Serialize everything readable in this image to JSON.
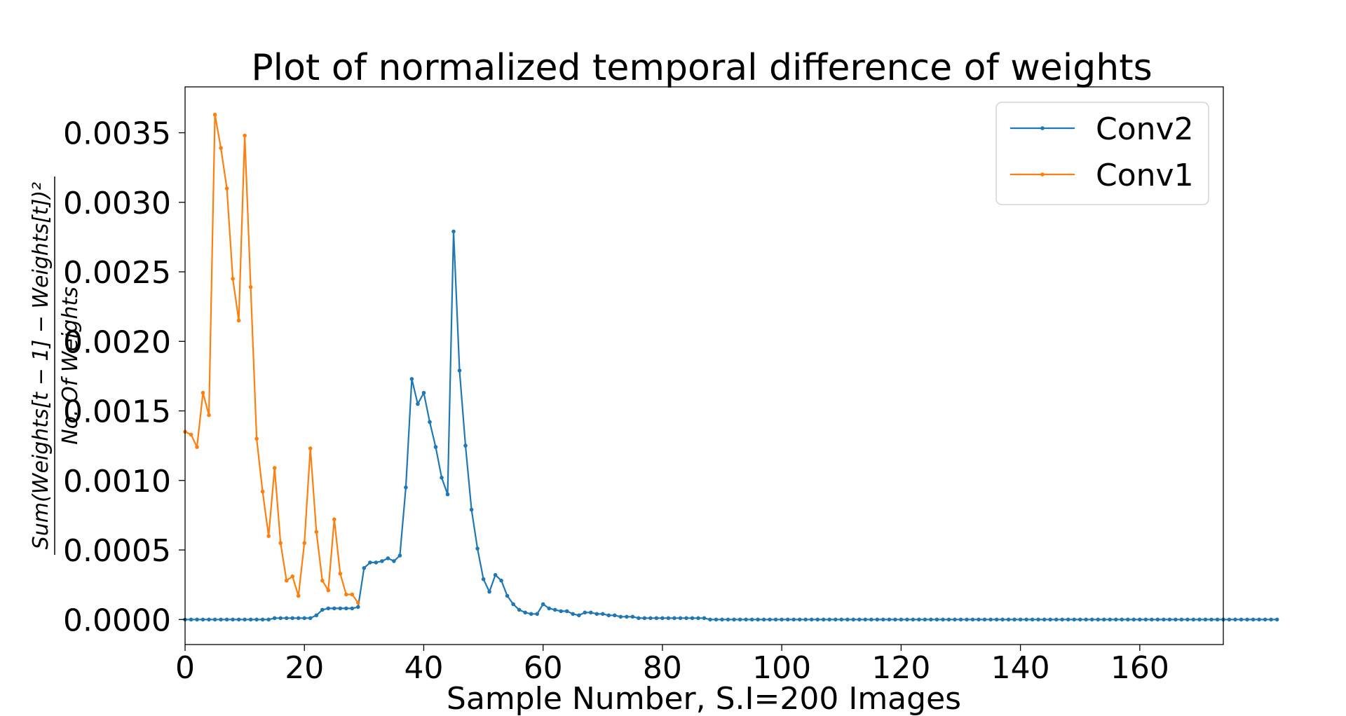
{
  "chart_data": {
    "type": "line",
    "title": "Plot of normalized temporal difference of weights",
    "xlabel": "Sample Number, S.I=200 Images",
    "ylabel_numerator": "Sum(Weights[t − 1] − Weights[t])²",
    "ylabel_denominator": "No. Of Weights",
    "xlim": [
      0,
      174
    ],
    "ylim": [
      -0.00018,
      0.00383
    ],
    "xticks": [
      0,
      20,
      40,
      60,
      80,
      100,
      120,
      140,
      160
    ],
    "xtick_labels": [
      "0",
      "20",
      "40",
      "60",
      "80",
      "100",
      "120",
      "140",
      "160"
    ],
    "yticks": [
      0,
      0.0005,
      0.001,
      0.0015,
      0.002,
      0.0025,
      0.003,
      0.0035
    ],
    "ytick_labels": [
      "0.0000",
      "0.0005",
      "0.0010",
      "0.0015",
      "0.0020",
      "0.0025",
      "0.0030",
      "0.0035"
    ],
    "grid": false,
    "legend_position": "top-right",
    "series": [
      {
        "name": "Conv2",
        "color": "#1f77b4",
        "x_start": 0,
        "values": [
          0.0,
          0.0,
          0.0,
          0.0,
          0.0,
          0.0,
          0.0,
          0.0,
          0.0,
          0.0,
          0.0,
          0.0,
          0.0,
          0.0,
          0.0,
          1e-05,
          1e-05,
          1e-05,
          1e-05,
          1e-05,
          1e-05,
          1e-05,
          3e-05,
          7e-05,
          8e-05,
          8e-05,
          8e-05,
          8e-05,
          8e-05,
          9e-05,
          0.00037,
          0.00041,
          0.00041,
          0.00042,
          0.00044,
          0.00042,
          0.00046,
          0.00095,
          0.00173,
          0.00155,
          0.00163,
          0.00142,
          0.00124,
          0.00102,
          0.0009,
          0.00279,
          0.00179,
          0.00125,
          0.00079,
          0.00051,
          0.00029,
          0.0002,
          0.00032,
          0.00028,
          0.00017,
          0.00011,
          7e-05,
          5e-05,
          4e-05,
          4e-05,
          0.00011,
          8e-05,
          7e-05,
          6e-05,
          6e-05,
          4e-05,
          3e-05,
          5e-05,
          5e-05,
          4e-05,
          4e-05,
          3e-05,
          3e-05,
          2e-05,
          2e-05,
          2e-05,
          1e-05,
          1e-05,
          1e-05,
          1e-05,
          1e-05,
          1e-05,
          1e-05,
          1e-05,
          1e-05,
          1e-05,
          1e-05,
          1e-05,
          0.0,
          0.0,
          0.0,
          0.0,
          0.0,
          0.0,
          0.0,
          0.0,
          0.0,
          0.0,
          0.0,
          0.0,
          0.0,
          0.0,
          0.0,
          0.0,
          0.0,
          0.0,
          0.0,
          0.0,
          0.0,
          0.0,
          0.0,
          0.0,
          0.0,
          0.0,
          0.0,
          0.0,
          0.0,
          0.0,
          0.0,
          0.0,
          0.0,
          0.0,
          0.0,
          0.0,
          0.0,
          0.0,
          0.0,
          0.0,
          0.0,
          0.0,
          0.0,
          0.0,
          0.0,
          0.0,
          0.0,
          0.0,
          0.0,
          0.0,
          0.0,
          0.0,
          0.0,
          0.0,
          0.0,
          0.0,
          0.0,
          0.0,
          0.0,
          0.0,
          0.0,
          0.0,
          0.0,
          0.0,
          0.0,
          0.0,
          0.0,
          0.0,
          0.0,
          0.0,
          0.0,
          0.0,
          0.0,
          0.0,
          0.0,
          0.0,
          0.0,
          0.0,
          0.0,
          0.0,
          0.0,
          0.0,
          0.0,
          0.0,
          0.0,
          0.0,
          0.0,
          0.0,
          0.0,
          0.0,
          0.0,
          0.0,
          0.0,
          0.0,
          0.0,
          0.0
        ]
      },
      {
        "name": "Conv1",
        "color": "#ff7f0e",
        "x_start": 0,
        "values": [
          0.00135,
          0.00133,
          0.00124,
          0.00163,
          0.00147,
          0.00363,
          0.00339,
          0.0031,
          0.00245,
          0.00215,
          0.00348,
          0.00239,
          0.0013,
          0.00092,
          0.0006,
          0.00109,
          0.00055,
          0.00028,
          0.00031,
          0.00017,
          0.00055,
          0.00123,
          0.00063,
          0.00028,
          0.00021,
          0.00072,
          0.00033,
          0.00018,
          0.00018,
          0.00012
        ]
      }
    ]
  }
}
